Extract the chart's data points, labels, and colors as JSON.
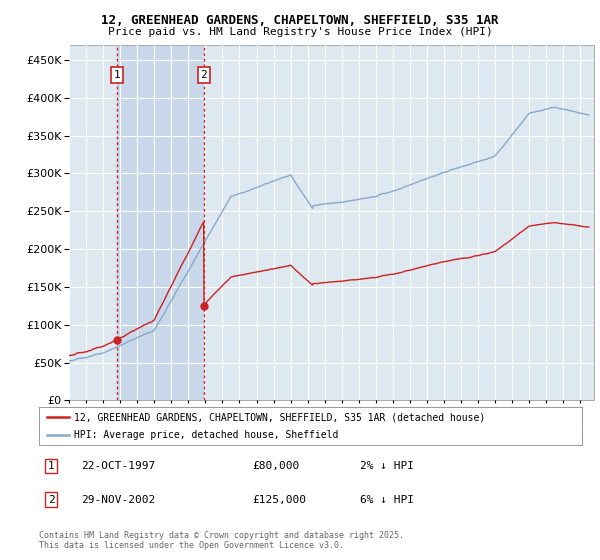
{
  "title_line1": "12, GREENHEAD GARDENS, CHAPELTOWN, SHEFFIELD, S35 1AR",
  "title_line2": "Price paid vs. HM Land Registry's House Price Index (HPI)",
  "background_color": "#ffffff",
  "plot_bg_color": "#dde8f0",
  "shade_color": "#c8d8ea",
  "grid_color": "#ffffff",
  "legend_label_price": "12, GREENHEAD GARDENS, CHAPELTOWN, SHEFFIELD, S35 1AR (detached house)",
  "legend_label_hpi": "HPI: Average price, detached house, Sheffield",
  "price_color": "#cc2222",
  "hpi_color": "#88aacc",
  "purchase1_date": 1997.81,
  "purchase1_price": 80000,
  "purchase2_date": 2002.91,
  "purchase2_price": 125000,
  "table_row1": [
    "1",
    "22-OCT-1997",
    "£80,000",
    "2% ↓ HPI"
  ],
  "table_row2": [
    "2",
    "29-NOV-2002",
    "£125,000",
    "6% ↓ HPI"
  ],
  "copyright_text": "Contains HM Land Registry data © Crown copyright and database right 2025.\nThis data is licensed under the Open Government Licence v3.0.",
  "ylim": [
    0,
    470000
  ],
  "xlim_start": 1995.0,
  "xlim_end": 2025.8,
  "vline1_x": 1997.81,
  "vline2_x": 2002.91
}
